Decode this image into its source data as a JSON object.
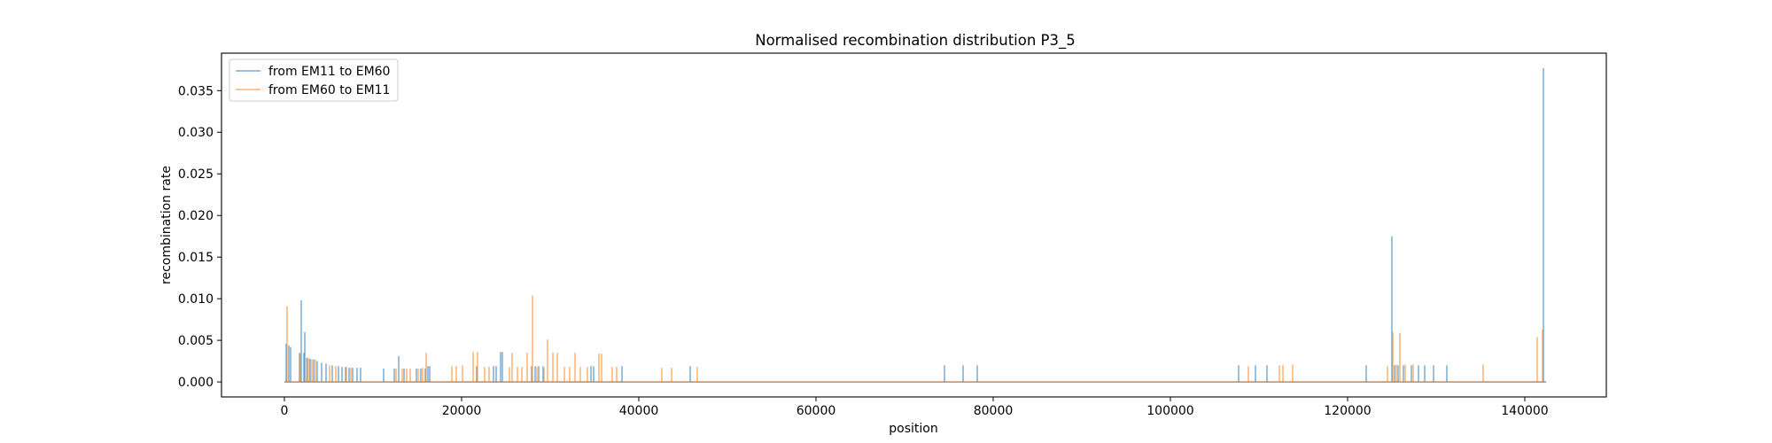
{
  "chart_data": {
    "type": "line",
    "title": "Normalised recombination distribution P3_5",
    "xlabel": "position",
    "ylabel": "recombination rate",
    "xlim": [
      -7100,
      149200
    ],
    "ylim": [
      -0.0018,
      0.0395
    ],
    "xticks": [
      0,
      20000,
      40000,
      60000,
      80000,
      100000,
      120000,
      140000
    ],
    "xtick_labels": [
      "0",
      "20000",
      "40000",
      "60000",
      "80000",
      "100000",
      "120000",
      "140000"
    ],
    "yticks": [
      0.0,
      0.005,
      0.01,
      0.015,
      0.02,
      0.025,
      0.03,
      0.035
    ],
    "ytick_labels": [
      "0.000",
      "0.005",
      "0.010",
      "0.015",
      "0.020",
      "0.025",
      "0.030",
      "0.035"
    ],
    "grid": false,
    "legend_position": "top-left",
    "baseline_x_range": [
      0,
      142400
    ],
    "series": [
      {
        "name": "from EM11 to EM60",
        "color": "#1f77b4",
        "spikes": [
          [
            200,
            0.0046
          ],
          [
            500,
            0.0044
          ],
          [
            700,
            0.0042
          ],
          [
            1700,
            0.0035
          ],
          [
            1900,
            0.0098
          ],
          [
            2200,
            0.0035
          ],
          [
            2300,
            0.006
          ],
          [
            2600,
            0.0029
          ],
          [
            2900,
            0.0028
          ],
          [
            3300,
            0.0027
          ],
          [
            3700,
            0.0025
          ],
          [
            4200,
            0.0023
          ],
          [
            4700,
            0.0022
          ],
          [
            5400,
            0.002
          ],
          [
            6100,
            0.0019
          ],
          [
            6500,
            0.0018
          ],
          [
            6900,
            0.0018
          ],
          [
            7300,
            0.0017
          ],
          [
            7700,
            0.0017
          ],
          [
            8200,
            0.0017
          ],
          [
            8600,
            0.0017
          ],
          [
            11200,
            0.0016
          ],
          [
            12400,
            0.0016
          ],
          [
            12900,
            0.0031
          ],
          [
            13500,
            0.0016
          ],
          [
            14900,
            0.0016
          ],
          [
            15400,
            0.0016
          ],
          [
            15900,
            0.0016
          ],
          [
            16200,
            0.0019
          ],
          [
            16400,
            0.0019
          ],
          [
            21700,
            0.0019
          ],
          [
            23600,
            0.0019
          ],
          [
            23900,
            0.0019
          ],
          [
            24400,
            0.0036
          ],
          [
            24600,
            0.0036
          ],
          [
            27900,
            0.0019
          ],
          [
            28300,
            0.0019
          ],
          [
            28700,
            0.0019
          ],
          [
            29200,
            0.0019
          ],
          [
            34600,
            0.0019
          ],
          [
            34900,
            0.0019
          ],
          [
            38100,
            0.0019
          ],
          [
            45800,
            0.0019
          ],
          [
            74500,
            0.002
          ],
          [
            76600,
            0.002
          ],
          [
            78200,
            0.002
          ],
          [
            107700,
            0.002
          ],
          [
            109600,
            0.002
          ],
          [
            110900,
            0.002
          ],
          [
            122100,
            0.002
          ],
          [
            125000,
            0.0175
          ],
          [
            125300,
            0.002
          ],
          [
            125700,
            0.002
          ],
          [
            126300,
            0.002
          ],
          [
            127200,
            0.002
          ],
          [
            128000,
            0.002
          ],
          [
            128700,
            0.002
          ],
          [
            129700,
            0.002
          ],
          [
            131200,
            0.002
          ],
          [
            142100,
            0.0377
          ]
        ]
      },
      {
        "name": "from EM60 to EM11",
        "color": "#ff7f0e",
        "spikes": [
          [
            300,
            0.0091
          ],
          [
            1800,
            0.0034
          ],
          [
            2500,
            0.0029
          ],
          [
            2800,
            0.0028
          ],
          [
            3100,
            0.0027
          ],
          [
            3500,
            0.0027
          ],
          [
            5100,
            0.002
          ],
          [
            5800,
            0.0019
          ],
          [
            7000,
            0.0018
          ],
          [
            7500,
            0.0017
          ],
          [
            12600,
            0.0016
          ],
          [
            13300,
            0.0016
          ],
          [
            13800,
            0.0016
          ],
          [
            14200,
            0.0016
          ],
          [
            15100,
            0.0016
          ],
          [
            15600,
            0.0017
          ],
          [
            16000,
            0.0035
          ],
          [
            18900,
            0.0019
          ],
          [
            19400,
            0.0019
          ],
          [
            20100,
            0.002
          ],
          [
            21300,
            0.0036
          ],
          [
            21800,
            0.0036
          ],
          [
            22600,
            0.0018
          ],
          [
            23100,
            0.0018
          ],
          [
            25400,
            0.0018
          ],
          [
            25700,
            0.0035
          ],
          [
            26300,
            0.0018
          ],
          [
            26800,
            0.0018
          ],
          [
            27400,
            0.0035
          ],
          [
            28000,
            0.0104
          ],
          [
            28500,
            0.0018
          ],
          [
            29300,
            0.0017
          ],
          [
            29700,
            0.0051
          ],
          [
            30300,
            0.0035
          ],
          [
            30800,
            0.0035
          ],
          [
            31600,
            0.0018
          ],
          [
            32200,
            0.0018
          ],
          [
            32800,
            0.0035
          ],
          [
            33400,
            0.0018
          ],
          [
            34200,
            0.0018
          ],
          [
            35500,
            0.0034
          ],
          [
            35800,
            0.0034
          ],
          [
            37000,
            0.0018
          ],
          [
            37500,
            0.0018
          ],
          [
            42600,
            0.0017
          ],
          [
            43700,
            0.0017
          ],
          [
            46600,
            0.0018
          ],
          [
            108800,
            0.0019
          ],
          [
            112300,
            0.002
          ],
          [
            112700,
            0.002
          ],
          [
            113800,
            0.0021
          ],
          [
            124500,
            0.0019
          ],
          [
            125100,
            0.006
          ],
          [
            125500,
            0.0021
          ],
          [
            125900,
            0.0059
          ],
          [
            126500,
            0.0021
          ],
          [
            127400,
            0.0021
          ],
          [
            135300,
            0.0021
          ],
          [
            141400,
            0.0054
          ],
          [
            142000,
            0.0063
          ]
        ]
      }
    ]
  }
}
